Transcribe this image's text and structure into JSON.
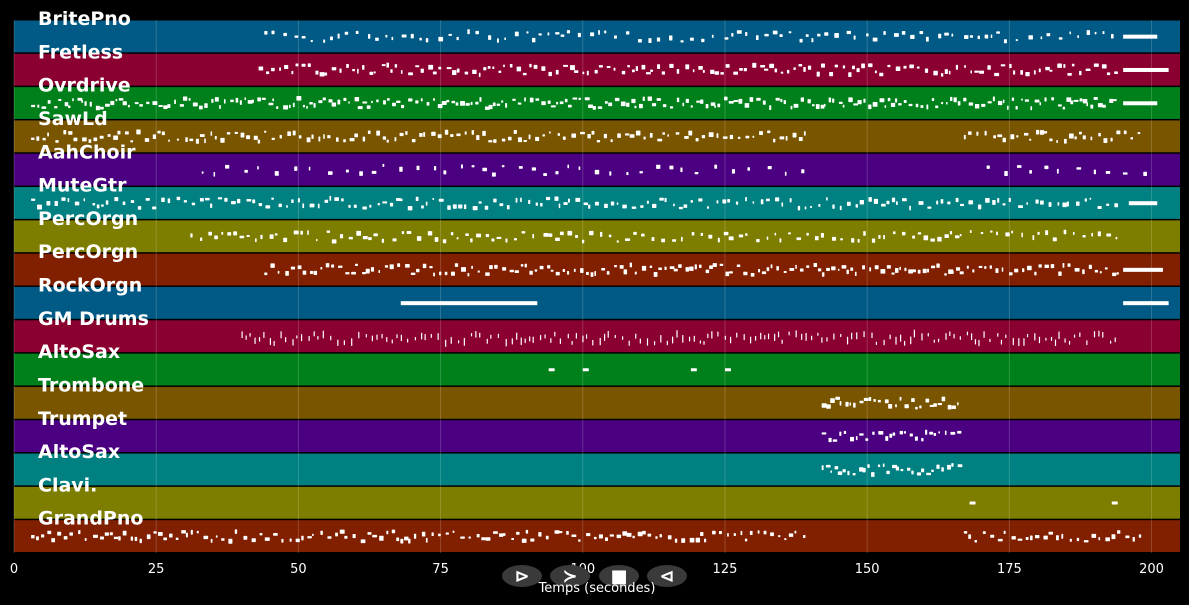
{
  "chart_data": {
    "type": "piano-roll",
    "xlabel": "Temps (secondes)",
    "xlim": [
      0,
      205
    ],
    "x_ticks": [
      0,
      25,
      50,
      75,
      100,
      125,
      150,
      175,
      200
    ],
    "grid": "vertical",
    "tracks": [
      {
        "name": "BritePno",
        "color": "#005a85",
        "note_ranges": [
          [
            44,
            194
          ]
        ],
        "spacing": 1.6,
        "dense_end": [
          195,
          201
        ]
      },
      {
        "name": "Fretless",
        "color": "#8a0030",
        "note_ranges": [
          [
            43,
            194
          ]
        ],
        "spacing": 1.1,
        "dense_end": [
          195,
          203
        ]
      },
      {
        "name": "Ovrdrive",
        "color": "#00801a",
        "note_ranges": [
          [
            3,
            194
          ]
        ],
        "spacing": 0.9,
        "dense_end": [
          195,
          201
        ]
      },
      {
        "name": "SawLd",
        "color": "#7a5500",
        "note_ranges": [
          [
            3,
            140
          ],
          [
            167,
            198
          ]
        ],
        "spacing": 1.1,
        "dense_end": null
      },
      {
        "name": "AahChoir",
        "color": "#4a0080",
        "note_ranges": [
          [
            33,
            140
          ],
          [
            171,
            199
          ]
        ],
        "spacing": 2.6,
        "dense_end": null
      },
      {
        "name": "MuteGtr",
        "color": "#008080",
        "note_ranges": [
          [
            3,
            194
          ]
        ],
        "spacing": 1.2,
        "dense_end": [
          196,
          201
        ]
      },
      {
        "name": "PercOrgn",
        "color": "#7d7d00",
        "note_ranges": [
          [
            31,
            194
          ]
        ],
        "spacing": 1.4,
        "dense_end": null
      },
      {
        "name": "PercOrgn",
        "color": "#802000",
        "note_ranges": [
          [
            44,
            194
          ]
        ],
        "spacing": 1.0,
        "dense_end": [
          195,
          202
        ]
      },
      {
        "name": "RockOrgn",
        "color": "#005a85",
        "note_ranges": [],
        "spacing": 1.0,
        "dense_end": [
          195,
          203
        ],
        "long_notes": [
          [
            68,
            92
          ]
        ]
      },
      {
        "name": "GM Drums",
        "color": "#8a0030",
        "note_ranges": [
          [
            40,
            194
          ]
        ],
        "spacing": 1.0,
        "dense_end": null
      },
      {
        "name": "AltoSax",
        "color": "#00801a",
        "note_ranges": [],
        "spacing": 1.0,
        "dense_end": null,
        "short_notes": [
          94,
          100,
          119,
          125
        ]
      },
      {
        "name": "Trombone",
        "color": "#7a5500",
        "note_ranges": [
          [
            142,
            166
          ]
        ],
        "spacing": 0.9,
        "dense_end": null
      },
      {
        "name": "Trumpet",
        "color": "#4a0080",
        "note_ranges": [
          [
            142,
            166
          ]
        ],
        "spacing": 0.9,
        "dense_end": null
      },
      {
        "name": "AltoSax",
        "color": "#008080",
        "note_ranges": [
          [
            142,
            166
          ]
        ],
        "spacing": 0.9,
        "dense_end": null
      },
      {
        "name": "Clavi.",
        "color": "#7d7d00",
        "note_ranges": [],
        "spacing": 1.0,
        "dense_end": null,
        "short_notes": [
          168,
          193
        ]
      },
      {
        "name": "GrandPno",
        "color": "#802000",
        "note_ranges": [
          [
            3,
            140
          ],
          [
            167,
            198
          ]
        ],
        "spacing": 1.1,
        "dense_end": null
      }
    ]
  },
  "controls": [
    {
      "name": "play-forward-button",
      "glyph": "⊳"
    },
    {
      "name": "fast-forward-button",
      "glyph": "≻"
    },
    {
      "name": "stop-button",
      "glyph": "■"
    },
    {
      "name": "rewind-button",
      "glyph": "⊲"
    }
  ]
}
